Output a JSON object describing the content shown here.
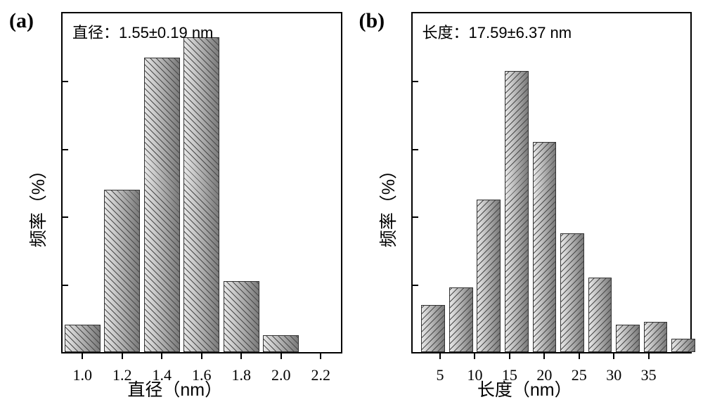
{
  "background_color": "#ffffff",
  "border_color": "#000000",
  "panels": {
    "a": {
      "label": "(a)",
      "annotation": "直径：1.55±0.19 nm",
      "annotation_fontsize": 22,
      "xlabel": "直径（nm）",
      "ylabel": "频率（%）",
      "label_fontsize": 25,
      "xlim": [
        0.9,
        2.3
      ],
      "tick_labels": [
        "1.0",
        "1.2",
        "1.4",
        "1.6",
        "1.8",
        "2.0",
        "2.2"
      ],
      "tick_positions": [
        1.0,
        1.2,
        1.4,
        1.6,
        1.8,
        2.0,
        2.2
      ],
      "tick_fontsize": 22,
      "ymax": 100,
      "ytick_count": 5,
      "bars": [
        {
          "x": 1.0,
          "h": 8
        },
        {
          "x": 1.2,
          "h": 48
        },
        {
          "x": 1.4,
          "h": 87
        },
        {
          "x": 1.6,
          "h": 93
        },
        {
          "x": 1.8,
          "h": 21
        },
        {
          "x": 2.0,
          "h": 5
        }
      ],
      "bar_width_data": 0.18,
      "bar_gradient_from": "#e8e8e8",
      "bar_gradient_to": "#7a7a7a",
      "hatch_dir": "45",
      "hatch_color": "#4a4a4a",
      "hatch_spacing": 6
    },
    "b": {
      "label": "(b)",
      "annotation": "长度：17.59±6.37 nm",
      "annotation_fontsize": 22,
      "xlabel": "长度（nm）",
      "ylabel": "频率（%）",
      "label_fontsize": 25,
      "xlim": [
        1,
        41
      ],
      "tick_labels": [
        "5",
        "10",
        "15",
        "20",
        "25",
        "30",
        "35"
      ],
      "tick_positions": [
        5,
        10,
        15,
        20,
        25,
        30,
        35
      ],
      "tick_fontsize": 22,
      "ymax": 100,
      "ytick_count": 5,
      "bars": [
        {
          "x": 4,
          "h": 14
        },
        {
          "x": 8,
          "h": 19
        },
        {
          "x": 12,
          "h": 45
        },
        {
          "x": 16,
          "h": 83
        },
        {
          "x": 20,
          "h": 62
        },
        {
          "x": 24,
          "h": 35
        },
        {
          "x": 28,
          "h": 22
        },
        {
          "x": 32,
          "h": 8
        },
        {
          "x": 36,
          "h": 9
        },
        {
          "x": 40,
          "h": 4
        }
      ],
      "bar_width_data": 3.4,
      "bar_gradient_from": "#e8e8e8",
      "bar_gradient_to": "#7a7a7a",
      "hatch_dir": "-45",
      "hatch_color": "#4a4a4a",
      "hatch_spacing": 6
    }
  }
}
